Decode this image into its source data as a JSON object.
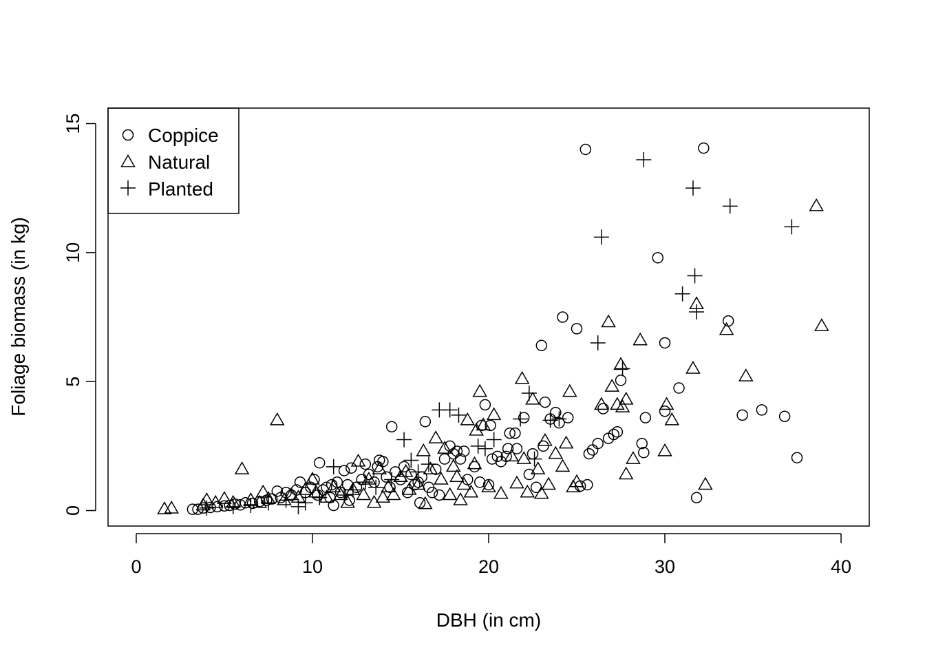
{
  "chart_data": {
    "type": "scatter",
    "title": "",
    "xlabel": "DBH (in cm)",
    "ylabel": "Foliage biomass (in kg)",
    "xlim": [
      -1.6,
      41.6
    ],
    "ylim": [
      -0.6,
      15.6
    ],
    "x_ticks": [
      0,
      10,
      20,
      30,
      40
    ],
    "y_ticks": [
      0,
      5,
      10,
      15
    ],
    "grid": false,
    "legend_position": "top-left",
    "series": [
      {
        "name": "Coppice",
        "marker": "circle",
        "points": [
          [
            3.2,
            0.05
          ],
          [
            3.5,
            0.05
          ],
          [
            3.8,
            0.1
          ],
          [
            4.2,
            0.12
          ],
          [
            4.6,
            0.15
          ],
          [
            5.0,
            0.18
          ],
          [
            5.3,
            0.2
          ],
          [
            5.6,
            0.25
          ],
          [
            5.9,
            0.22
          ],
          [
            6.2,
            0.3
          ],
          [
            6.6,
            0.28
          ],
          [
            7.0,
            0.35
          ],
          [
            7.4,
            0.4
          ],
          [
            7.7,
            0.45
          ],
          [
            8.0,
            0.75
          ],
          [
            8.2,
            0.5
          ],
          [
            8.5,
            0.7
          ],
          [
            8.8,
            0.6
          ],
          [
            9.1,
            0.8
          ],
          [
            9.3,
            1.1
          ],
          [
            9.6,
            0.7
          ],
          [
            9.9,
            0.9
          ],
          [
            10.1,
            1.2
          ],
          [
            10.3,
            0.6
          ],
          [
            10.4,
            1.85
          ],
          [
            10.6,
            0.8
          ],
          [
            10.8,
            0.9
          ],
          [
            11.0,
            0.5
          ],
          [
            11.1,
            1.0
          ],
          [
            11.2,
            0.2
          ],
          [
            11.4,
            1.1
          ],
          [
            11.6,
            0.7
          ],
          [
            11.8,
            1.55
          ],
          [
            12.0,
            1.0
          ],
          [
            12.1,
            0.4
          ],
          [
            12.2,
            1.65
          ],
          [
            12.5,
            0.9
          ],
          [
            12.8,
            1.2
          ],
          [
            13.0,
            1.8
          ],
          [
            13.2,
            1.4
          ],
          [
            13.5,
            1.1
          ],
          [
            13.7,
            1.7
          ],
          [
            13.8,
            1.95
          ],
          [
            14.0,
            1.9
          ],
          [
            14.2,
            1.3
          ],
          [
            14.4,
            0.9
          ],
          [
            14.5,
            3.25
          ],
          [
            14.7,
            1.5
          ],
          [
            15.0,
            1.2
          ],
          [
            15.2,
            1.7
          ],
          [
            15.4,
            0.7
          ],
          [
            15.6,
            1.4
          ],
          [
            15.8,
            1.0
          ],
          [
            16.0,
            1.1
          ],
          [
            16.1,
            0.3
          ],
          [
            16.2,
            1.3
          ],
          [
            16.4,
            3.45
          ],
          [
            16.6,
            0.9
          ],
          [
            16.8,
            0.7
          ],
          [
            17.0,
            1.6
          ],
          [
            17.2,
            0.6
          ],
          [
            17.5,
            2.0
          ],
          [
            17.8,
            2.5
          ],
          [
            18.0,
            2.2
          ],
          [
            18.2,
            2.3
          ],
          [
            18.4,
            2.0
          ],
          [
            18.6,
            2.3
          ],
          [
            18.8,
            1.2
          ],
          [
            19.2,
            1.7
          ],
          [
            19.5,
            1.1
          ],
          [
            19.6,
            3.3
          ],
          [
            19.8,
            4.1
          ],
          [
            20.0,
            1.0
          ],
          [
            20.1,
            3.3
          ],
          [
            20.2,
            2.0
          ],
          [
            20.5,
            2.1
          ],
          [
            20.7,
            1.9
          ],
          [
            21.0,
            2.1
          ],
          [
            21.1,
            2.4
          ],
          [
            21.2,
            3.0
          ],
          [
            21.5,
            3.0
          ],
          [
            21.6,
            2.4
          ],
          [
            22.0,
            3.6
          ],
          [
            22.3,
            1.4
          ],
          [
            22.5,
            2.2
          ],
          [
            22.7,
            0.9
          ],
          [
            23.0,
            6.4
          ],
          [
            23.1,
            2.5
          ],
          [
            23.2,
            4.2
          ],
          [
            23.5,
            3.55
          ],
          [
            23.8,
            3.8
          ],
          [
            24.0,
            3.4
          ],
          [
            24.2,
            7.5
          ],
          [
            24.5,
            3.6
          ],
          [
            25.0,
            7.05
          ],
          [
            25.2,
            0.95
          ],
          [
            25.5,
            14.0
          ],
          [
            25.6,
            1.0
          ],
          [
            25.7,
            2.2
          ],
          [
            25.9,
            2.35
          ],
          [
            26.2,
            2.6
          ],
          [
            26.5,
            3.95
          ],
          [
            26.8,
            2.8
          ],
          [
            27.1,
            2.95
          ],
          [
            27.3,
            3.05
          ],
          [
            27.5,
            5.05
          ],
          [
            28.7,
            2.6
          ],
          [
            28.8,
            2.25
          ],
          [
            28.9,
            3.6
          ],
          [
            29.6,
            9.8
          ],
          [
            30.0,
            6.5
          ],
          [
            30.0,
            3.85
          ],
          [
            30.8,
            4.75
          ],
          [
            31.8,
            0.5
          ],
          [
            32.2,
            14.05
          ],
          [
            33.6,
            7.35
          ],
          [
            34.4,
            3.7
          ],
          [
            35.5,
            3.9
          ],
          [
            36.8,
            3.65
          ],
          [
            37.5,
            2.05
          ]
        ]
      },
      {
        "name": "Natural",
        "marker": "triangle",
        "points": [
          [
            1.6,
            0.05
          ],
          [
            2.0,
            0.08
          ],
          [
            3.8,
            0.2
          ],
          [
            4.0,
            0.4
          ],
          [
            4.5,
            0.3
          ],
          [
            5.0,
            0.45
          ],
          [
            5.5,
            0.3
          ],
          [
            6.0,
            1.6
          ],
          [
            6.5,
            0.4
          ],
          [
            7.0,
            0.3
          ],
          [
            7.2,
            0.7
          ],
          [
            7.5,
            0.45
          ],
          [
            8.0,
            3.5
          ],
          [
            8.4,
            0.4
          ],
          [
            8.8,
            0.6
          ],
          [
            9.2,
            0.5
          ],
          [
            9.6,
            0.8
          ],
          [
            10.0,
            1.2
          ],
          [
            10.2,
            0.7
          ],
          [
            10.8,
            0.5
          ],
          [
            11.2,
            0.9
          ],
          [
            11.6,
            0.6
          ],
          [
            12.0,
            0.3
          ],
          [
            12.3,
            0.8
          ],
          [
            12.6,
            1.9
          ],
          [
            12.9,
            0.6
          ],
          [
            13.2,
            1.2
          ],
          [
            13.5,
            0.3
          ],
          [
            13.8,
            1.6
          ],
          [
            14.0,
            0.5
          ],
          [
            14.3,
            0.9
          ],
          [
            14.6,
            0.6
          ],
          [
            15.0,
            1.3
          ],
          [
            15.3,
            1.5
          ],
          [
            15.5,
            0.8
          ],
          [
            16.0,
            1.0
          ],
          [
            16.3,
            2.3
          ],
          [
            16.4,
            0.25
          ],
          [
            16.7,
            1.6
          ],
          [
            17.0,
            2.8
          ],
          [
            17.3,
            1.2
          ],
          [
            17.5,
            2.4
          ],
          [
            17.8,
            0.6
          ],
          [
            18.0,
            1.7
          ],
          [
            18.2,
            1.3
          ],
          [
            18.4,
            0.4
          ],
          [
            18.6,
            1.0
          ],
          [
            18.8,
            3.5
          ],
          [
            19.0,
            0.7
          ],
          [
            19.2,
            1.8
          ],
          [
            19.3,
            3.1
          ],
          [
            19.5,
            4.6
          ],
          [
            19.7,
            3.3
          ],
          [
            20.0,
            0.9
          ],
          [
            20.3,
            3.7
          ],
          [
            20.7,
            0.65
          ],
          [
            21.3,
            2.1
          ],
          [
            21.6,
            1.05
          ],
          [
            21.9,
            5.1
          ],
          [
            22.0,
            2.0
          ],
          [
            22.2,
            0.7
          ],
          [
            22.5,
            4.3
          ],
          [
            22.8,
            1.6
          ],
          [
            23.0,
            0.65
          ],
          [
            23.2,
            2.7
          ],
          [
            23.4,
            1.0
          ],
          [
            23.8,
            2.2
          ],
          [
            24.2,
            1.7
          ],
          [
            24.4,
            2.6
          ],
          [
            24.6,
            4.6
          ],
          [
            24.8,
            0.9
          ],
          [
            25.0,
            1.1
          ],
          [
            26.4,
            4.1
          ],
          [
            26.8,
            7.3
          ],
          [
            27.0,
            4.8
          ],
          [
            27.3,
            4.1
          ],
          [
            27.5,
            5.65
          ],
          [
            27.6,
            4.0
          ],
          [
            27.8,
            4.3
          ],
          [
            27.8,
            1.4
          ],
          [
            28.2,
            2.0
          ],
          [
            28.6,
            6.6
          ],
          [
            30.0,
            2.3
          ],
          [
            30.1,
            4.1
          ],
          [
            30.4,
            3.5
          ],
          [
            31.6,
            5.5
          ],
          [
            31.8,
            8.0
          ],
          [
            32.3,
            1.0
          ],
          [
            33.5,
            7.0
          ],
          [
            34.6,
            5.2
          ],
          [
            38.6,
            11.8
          ],
          [
            38.9,
            7.15
          ]
        ]
      },
      {
        "name": "Planted",
        "marker": "plus",
        "points": [
          [
            4.0,
            0.1
          ],
          [
            5.5,
            0.15
          ],
          [
            6.5,
            0.2
          ],
          [
            7.5,
            0.3
          ],
          [
            8.5,
            0.4
          ],
          [
            9.2,
            0.15
          ],
          [
            9.6,
            0.3
          ],
          [
            10.4,
            0.5
          ],
          [
            11.2,
            1.7
          ],
          [
            11.8,
            0.6
          ],
          [
            12.3,
            0.8
          ],
          [
            13.0,
            1.1
          ],
          [
            13.6,
            0.9
          ],
          [
            14.5,
            1.2
          ],
          [
            15.2,
            2.75
          ],
          [
            15.6,
            1.95
          ],
          [
            16.0,
            1.5
          ],
          [
            16.6,
            1.8
          ],
          [
            17.2,
            3.9
          ],
          [
            17.8,
            3.9
          ],
          [
            18.3,
            3.7
          ],
          [
            19.4,
            2.5
          ],
          [
            19.8,
            2.4
          ],
          [
            20.3,
            2.75
          ],
          [
            21.8,
            3.55
          ],
          [
            22.3,
            4.55
          ],
          [
            22.6,
            2.0
          ],
          [
            23.5,
            3.5
          ],
          [
            24.0,
            3.55
          ],
          [
            26.2,
            6.5
          ],
          [
            26.4,
            10.6
          ],
          [
            27.6,
            5.5
          ],
          [
            28.8,
            13.6
          ],
          [
            31.0,
            8.4
          ],
          [
            31.6,
            12.5
          ],
          [
            31.7,
            9.1
          ],
          [
            31.8,
            7.7
          ],
          [
            33.7,
            11.8
          ],
          [
            37.2,
            11.0
          ]
        ]
      }
    ]
  }
}
